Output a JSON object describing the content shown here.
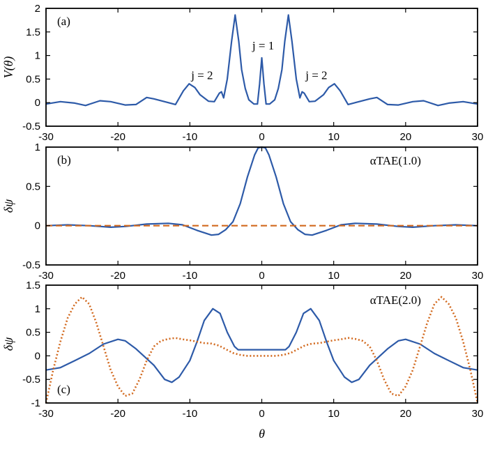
{
  "chart_data": [
    {
      "type": "line",
      "panel_label": "(a)",
      "ylabel": "V(θ)",
      "xlabel": "",
      "xlim": [
        -30,
        30
      ],
      "ylim": [
        -0.5,
        2
      ],
      "xticks": [
        -30,
        -20,
        -10,
        0,
        10,
        20,
        30
      ],
      "yticks": [
        -0.5,
        0,
        0.5,
        1,
        1.5,
        2
      ],
      "ytick_labels": [
        "-0.5",
        "0",
        "0.5",
        "1",
        "1.5",
        "2"
      ],
      "annotations": [
        {
          "text": "j = 2",
          "x": -8.3,
          "y": 0.5
        },
        {
          "text": "j = 1",
          "x": 0.2,
          "y": 1.13
        },
        {
          "text": "j = 2",
          "x": 7.6,
          "y": 0.5
        }
      ],
      "series": [
        {
          "color": "#2d5aa8",
          "style": "solid",
          "points": [
            [
              -30,
              -0.03
            ],
            [
              -28,
              0.02
            ],
            [
              -26,
              -0.01
            ],
            [
              -24.5,
              -0.06
            ],
            [
              -22.5,
              0.04
            ],
            [
              -21,
              0.02
            ],
            [
              -19,
              -0.05
            ],
            [
              -17.5,
              -0.04
            ],
            [
              -16,
              0.11
            ],
            [
              -15,
              0.08
            ],
            [
              -13,
              0.0
            ],
            [
              -12,
              -0.04
            ],
            [
              -10.9,
              0.25
            ],
            [
              -10.1,
              0.4
            ],
            [
              -9.3,
              0.32
            ],
            [
              -8.6,
              0.17
            ],
            [
              -7.4,
              0.03
            ],
            [
              -6.6,
              0.02
            ],
            [
              -5.9,
              0.2
            ],
            [
              -5.6,
              0.23
            ],
            [
              -5.3,
              0.1
            ],
            [
              -4.8,
              0.5
            ],
            [
              -4.2,
              1.3
            ],
            [
              -3.7,
              1.86
            ],
            [
              -3.2,
              1.3
            ],
            [
              -2.8,
              0.7
            ],
            [
              -2.3,
              0.3
            ],
            [
              -1.8,
              0.06
            ],
            [
              -1.1,
              -0.03
            ],
            [
              -0.6,
              -0.03
            ],
            [
              -0.3,
              0.4
            ],
            [
              0,
              0.95
            ],
            [
              0.3,
              0.4
            ],
            [
              0.6,
              -0.03
            ],
            [
              1.1,
              -0.03
            ],
            [
              1.8,
              0.06
            ],
            [
              2.3,
              0.3
            ],
            [
              2.8,
              0.7
            ],
            [
              3.2,
              1.3
            ],
            [
              3.7,
              1.86
            ],
            [
              4.2,
              1.3
            ],
            [
              4.8,
              0.5
            ],
            [
              5.3,
              0.1
            ],
            [
              5.6,
              0.23
            ],
            [
              5.9,
              0.2
            ],
            [
              6.6,
              0.02
            ],
            [
              7.4,
              0.03
            ],
            [
              8.6,
              0.17
            ],
            [
              9.3,
              0.32
            ],
            [
              10.1,
              0.4
            ],
            [
              10.9,
              0.25
            ],
            [
              12,
              -0.04
            ],
            [
              13,
              0.0
            ],
            [
              15,
              0.08
            ],
            [
              16,
              0.11
            ],
            [
              17.5,
              -0.04
            ],
            [
              19,
              -0.05
            ],
            [
              21,
              0.02
            ],
            [
              22.5,
              0.04
            ],
            [
              24.5,
              -0.06
            ],
            [
              26,
              -0.01
            ],
            [
              28,
              0.02
            ],
            [
              30,
              -0.03
            ]
          ]
        }
      ]
    },
    {
      "type": "line",
      "panel_label": "(b)",
      "ylabel": "δψ",
      "xlabel": "",
      "xlim": [
        -30,
        30
      ],
      "ylim": [
        -0.5,
        1
      ],
      "xticks": [
        -30,
        -20,
        -10,
        0,
        10,
        20,
        30
      ],
      "yticks": [
        -0.5,
        0,
        0.5,
        1
      ],
      "ytick_labels": [
        "-0.5",
        "0",
        "0.5",
        "1"
      ],
      "annotations": [
        {
          "text": "αTAE(1.0)",
          "x": 18.6,
          "y": 0.78
        }
      ],
      "series": [
        {
          "color": "#2d5aa8",
          "style": "solid",
          "points": [
            [
              -30,
              0.0
            ],
            [
              -27,
              0.01
            ],
            [
              -24,
              0.0
            ],
            [
              -21,
              -0.02
            ],
            [
              -19,
              -0.01
            ],
            [
              -16,
              0.02
            ],
            [
              -13,
              0.03
            ],
            [
              -11,
              0.01
            ],
            [
              -9,
              -0.06
            ],
            [
              -7,
              -0.12
            ],
            [
              -6,
              -0.11
            ],
            [
              -5,
              -0.05
            ],
            [
              -4,
              0.05
            ],
            [
              -3,
              0.28
            ],
            [
              -2,
              0.62
            ],
            [
              -1,
              0.9
            ],
            [
              -0.5,
              0.99
            ],
            [
              0,
              1.0
            ],
            [
              0.5,
              0.99
            ],
            [
              1,
              0.9
            ],
            [
              2,
              0.62
            ],
            [
              3,
              0.28
            ],
            [
              4,
              0.05
            ],
            [
              5,
              -0.05
            ],
            [
              6,
              -0.11
            ],
            [
              7,
              -0.12
            ],
            [
              9,
              -0.06
            ],
            [
              11,
              0.01
            ],
            [
              13,
              0.03
            ],
            [
              16,
              0.02
            ],
            [
              19,
              -0.01
            ],
            [
              21,
              -0.02
            ],
            [
              24,
              0.0
            ],
            [
              27,
              0.01
            ],
            [
              30,
              0.0
            ]
          ]
        },
        {
          "color": "#d2691e",
          "style": "dashed",
          "points": [
            [
              -30,
              0.0
            ],
            [
              30,
              0.0
            ]
          ]
        }
      ]
    },
    {
      "type": "line",
      "panel_label": "(c)",
      "ylabel": "δψ",
      "xlabel": "θ",
      "xlim": [
        -30,
        30
      ],
      "ylim": [
        -1,
        1.5
      ],
      "xticks": [
        -30,
        -20,
        -10,
        0,
        10,
        20,
        30
      ],
      "yticks": [
        -1,
        -0.5,
        0,
        0.5,
        1,
        1.5
      ],
      "ytick_labels": [
        "-1",
        "-0.5",
        "0",
        "0.5",
        "1",
        "1.5"
      ],
      "annotations": [
        {
          "text": "αTAE(2.0)",
          "x": 18.6,
          "y": 1.1
        }
      ],
      "series": [
        {
          "color": "#2d5aa8",
          "style": "solid",
          "points": [
            [
              -30,
              -0.3
            ],
            [
              -28,
              -0.25
            ],
            [
              -26,
              -0.1
            ],
            [
              -24,
              0.05
            ],
            [
              -22,
              0.25
            ],
            [
              -20,
              0.35
            ],
            [
              -19,
              0.32
            ],
            [
              -17.5,
              0.15
            ],
            [
              -15,
              -0.2
            ],
            [
              -13.5,
              -0.5
            ],
            [
              -12.5,
              -0.56
            ],
            [
              -11.5,
              -0.45
            ],
            [
              -10,
              -0.1
            ],
            [
              -9,
              0.3
            ],
            [
              -8,
              0.75
            ],
            [
              -6.8,
              1.0
            ],
            [
              -5.8,
              0.9
            ],
            [
              -4.8,
              0.5
            ],
            [
              -3.8,
              0.2
            ],
            [
              -3.3,
              0.13
            ],
            [
              -2.5,
              0.13
            ],
            [
              0,
              0.13
            ],
            [
              2.5,
              0.13
            ],
            [
              3.3,
              0.13
            ],
            [
              3.8,
              0.2
            ],
            [
              4.8,
              0.5
            ],
            [
              5.8,
              0.9
            ],
            [
              6.8,
              1.0
            ],
            [
              8,
              0.75
            ],
            [
              9,
              0.3
            ],
            [
              10,
              -0.1
            ],
            [
              11.5,
              -0.45
            ],
            [
              12.5,
              -0.56
            ],
            [
              13.5,
              -0.5
            ],
            [
              15,
              -0.2
            ],
            [
              17.5,
              0.15
            ],
            [
              19,
              0.32
            ],
            [
              20,
              0.35
            ],
            [
              22,
              0.25
            ],
            [
              24,
              0.05
            ],
            [
              26,
              -0.1
            ],
            [
              28,
              -0.25
            ],
            [
              30,
              -0.3
            ]
          ]
        },
        {
          "color": "#d2691e",
          "style": "dotted",
          "points": [
            [
              -30,
              -1.0
            ],
            [
              -29,
              -0.3
            ],
            [
              -28,
              0.3
            ],
            [
              -27,
              0.8
            ],
            [
              -26,
              1.1
            ],
            [
              -25,
              1.25
            ],
            [
              -24,
              1.1
            ],
            [
              -23,
              0.7
            ],
            [
              -22,
              0.2
            ],
            [
              -21,
              -0.3
            ],
            [
              -20,
              -0.65
            ],
            [
              -19,
              -0.85
            ],
            [
              -18,
              -0.8
            ],
            [
              -17,
              -0.5
            ],
            [
              -16,
              -0.1
            ],
            [
              -15,
              0.2
            ],
            [
              -14,
              0.32
            ],
            [
              -13,
              0.36
            ],
            [
              -12,
              0.38
            ],
            [
              -11,
              0.35
            ],
            [
              -10,
              0.33
            ],
            [
              -9,
              0.3
            ],
            [
              -8,
              0.27
            ],
            [
              -7,
              0.26
            ],
            [
              -6,
              0.22
            ],
            [
              -5,
              0.14
            ],
            [
              -4,
              0.06
            ],
            [
              -3,
              0.02
            ],
            [
              -2,
              0.0
            ],
            [
              0,
              0.0
            ],
            [
              2,
              0.0
            ],
            [
              3,
              0.02
            ],
            [
              4,
              0.06
            ],
            [
              5,
              0.14
            ],
            [
              6,
              0.22
            ],
            [
              7,
              0.26
            ],
            [
              8,
              0.27
            ],
            [
              9,
              0.3
            ],
            [
              10,
              0.33
            ],
            [
              11,
              0.35
            ],
            [
              12,
              0.38
            ],
            [
              13,
              0.36
            ],
            [
              14,
              0.32
            ],
            [
              15,
              0.2
            ],
            [
              16,
              -0.1
            ],
            [
              17,
              -0.5
            ],
            [
              18,
              -0.8
            ],
            [
              19,
              -0.85
            ],
            [
              20,
              -0.65
            ],
            [
              21,
              -0.3
            ],
            [
              22,
              0.2
            ],
            [
              23,
              0.7
            ],
            [
              24,
              1.1
            ],
            [
              25,
              1.25
            ],
            [
              26,
              1.1
            ],
            [
              27,
              0.8
            ],
            [
              28,
              0.3
            ],
            [
              29,
              -0.3
            ],
            [
              30,
              -1.0
            ]
          ]
        }
      ]
    }
  ]
}
